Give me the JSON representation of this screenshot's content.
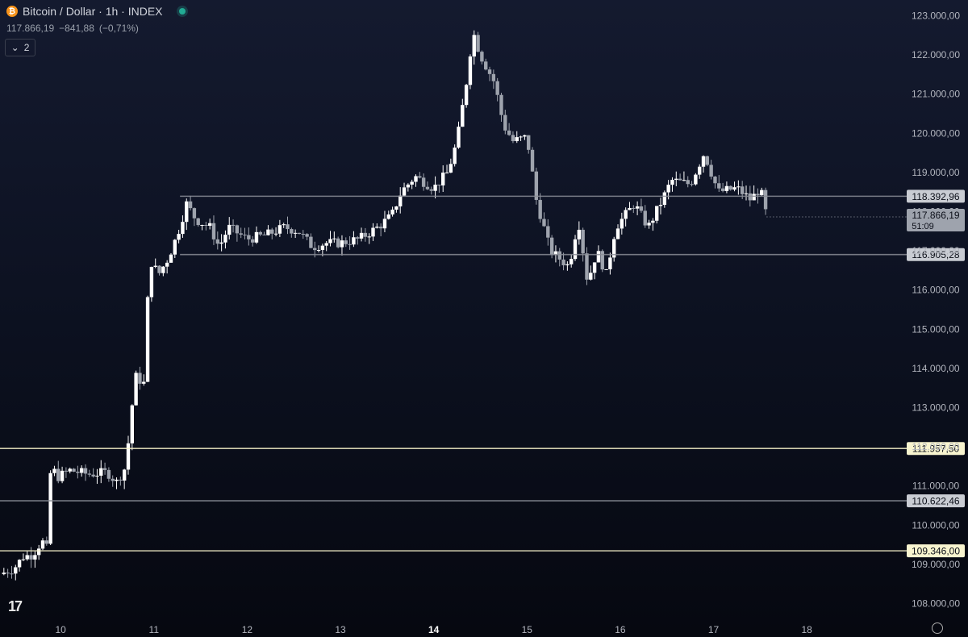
{
  "header": {
    "title": "Bitcoin / Dollar · 1h · INDEX",
    "coin_icon": "bitcoin-icon",
    "last": "117.866,19",
    "change": "−841,88",
    "change_pct": "(−0,71%)",
    "indicator_count": "2"
  },
  "chart_data": {
    "type": "candlestick",
    "timeframe": "1h",
    "ylim": [
      107600,
      123400
    ],
    "y_ticks": [
      108000,
      109000,
      110000,
      111000,
      112000,
      113000,
      114000,
      115000,
      116000,
      117000,
      118000,
      119000,
      120000,
      121000,
      122000,
      123000
    ],
    "y_tick_labels": [
      "108.000,00",
      "109.000,00",
      "110.000,00",
      "111.000,00",
      "112.000,00",
      "113.000,00",
      "114.000,00",
      "115.000,00",
      "116.000,00",
      "117.000,00",
      "118.000,00",
      "119.000,00",
      "120.000,00",
      "121.000,00",
      "122.000,00",
      "123.000,00"
    ],
    "x_ticks": [
      "10",
      "11",
      "12",
      "13",
      "14",
      "15",
      "16",
      "17",
      "18"
    ],
    "x_range_days": [
      9.35,
      18.95
    ],
    "close_path": [
      [
        9.35,
        108750
      ],
      [
        9.5,
        108900
      ],
      [
        9.6,
        109200
      ],
      [
        9.7,
        109250
      ],
      [
        9.8,
        109600
      ],
      [
        9.85,
        109400
      ],
      [
        9.9,
        111700
      ],
      [
        9.95,
        111200
      ],
      [
        10.1,
        111400
      ],
      [
        10.3,
        111300
      ],
      [
        10.5,
        111350
      ],
      [
        10.6,
        111100
      ],
      [
        10.7,
        111500
      ],
      [
        10.75,
        112700
      ],
      [
        10.8,
        113800
      ],
      [
        10.9,
        113600
      ],
      [
        10.95,
        116800
      ],
      [
        11.05,
        116400
      ],
      [
        11.15,
        116800
      ],
      [
        11.25,
        117400
      ],
      [
        11.35,
        118200
      ],
      [
        11.45,
        117800
      ],
      [
        11.6,
        117600
      ],
      [
        11.7,
        117100
      ],
      [
        11.8,
        117600
      ],
      [
        12.0,
        117300
      ],
      [
        12.2,
        117400
      ],
      [
        12.4,
        117600
      ],
      [
        12.55,
        117500
      ],
      [
        12.7,
        117100
      ],
      [
        12.85,
        117200
      ],
      [
        13.0,
        117200
      ],
      [
        13.2,
        117300
      ],
      [
        13.4,
        117600
      ],
      [
        13.55,
        117900
      ],
      [
        13.65,
        118500
      ],
      [
        13.8,
        118900
      ],
      [
        14.0,
        118600
      ],
      [
        14.15,
        119000
      ],
      [
        14.25,
        119800
      ],
      [
        14.35,
        121300
      ],
      [
        14.42,
        122600
      ],
      [
        14.5,
        122000
      ],
      [
        14.65,
        121300
      ],
      [
        14.75,
        120200
      ],
      [
        14.85,
        119800
      ],
      [
        15.0,
        119900
      ],
      [
        15.1,
        118300
      ],
      [
        15.25,
        117000
      ],
      [
        15.45,
        116600
      ],
      [
        15.55,
        117800
      ],
      [
        15.65,
        116200
      ],
      [
        15.75,
        117000
      ],
      [
        15.85,
        116400
      ],
      [
        15.95,
        117600
      ],
      [
        16.15,
        118200
      ],
      [
        16.3,
        117600
      ],
      [
        16.45,
        118300
      ],
      [
        16.55,
        118800
      ],
      [
        16.75,
        118700
      ],
      [
        16.9,
        119500
      ],
      [
        17.05,
        118500
      ],
      [
        17.25,
        118600
      ],
      [
        17.4,
        118300
      ],
      [
        17.5,
        118600
      ],
      [
        17.57,
        117866
      ]
    ],
    "candles": [
      {
        "o": 117800,
        "h": 118150,
        "l": 117500,
        "c": 117900
      },
      {
        "o": 117900,
        "h": 118000,
        "l": 117650,
        "c": 117700
      },
      {
        "o": 117700,
        "h": 117800,
        "l": 117300,
        "c": 117866
      }
    ],
    "levels": [
      {
        "value": 118392.96,
        "label": "118.392,96",
        "x_start_day": 11.28,
        "color": "#8a8d96",
        "label_bg": "#c9ccd3",
        "label_color": "#0c0f19"
      },
      {
        "value": 116905.28,
        "label": "116.905,28",
        "x_start_day": 11.28,
        "color": "#8a8d96",
        "label_bg": "#c9ccd3",
        "label_color": "#0c0f19"
      },
      {
        "value": 111957.5,
        "label": "111.957,50",
        "x_start_day": 9.35,
        "color": "#f5f1c8",
        "label_bg": "#f8f4cf",
        "label_color": "#0c0f19"
      },
      {
        "value": 110622.46,
        "label": "110.622,46",
        "x_start_day": 9.35,
        "color": "#8a8d96",
        "label_bg": "#c9ccd3",
        "label_color": "#0c0f19"
      },
      {
        "value": 109346.0,
        "label": "109.346,00",
        "x_start_day": 9.35,
        "color": "#f5f1c8",
        "label_bg": "#f8f4cf",
        "label_color": "#0c0f19"
      }
    ],
    "last_price": {
      "value": 117866.19,
      "label": "117.866,19",
      "countdown": "51:09"
    },
    "colors": {
      "up": "#ffffff",
      "down": "#9ea3ad",
      "axis_text": "#b2b5be",
      "bg_top": "#141a2f",
      "bg_bottom": "#060810"
    }
  }
}
